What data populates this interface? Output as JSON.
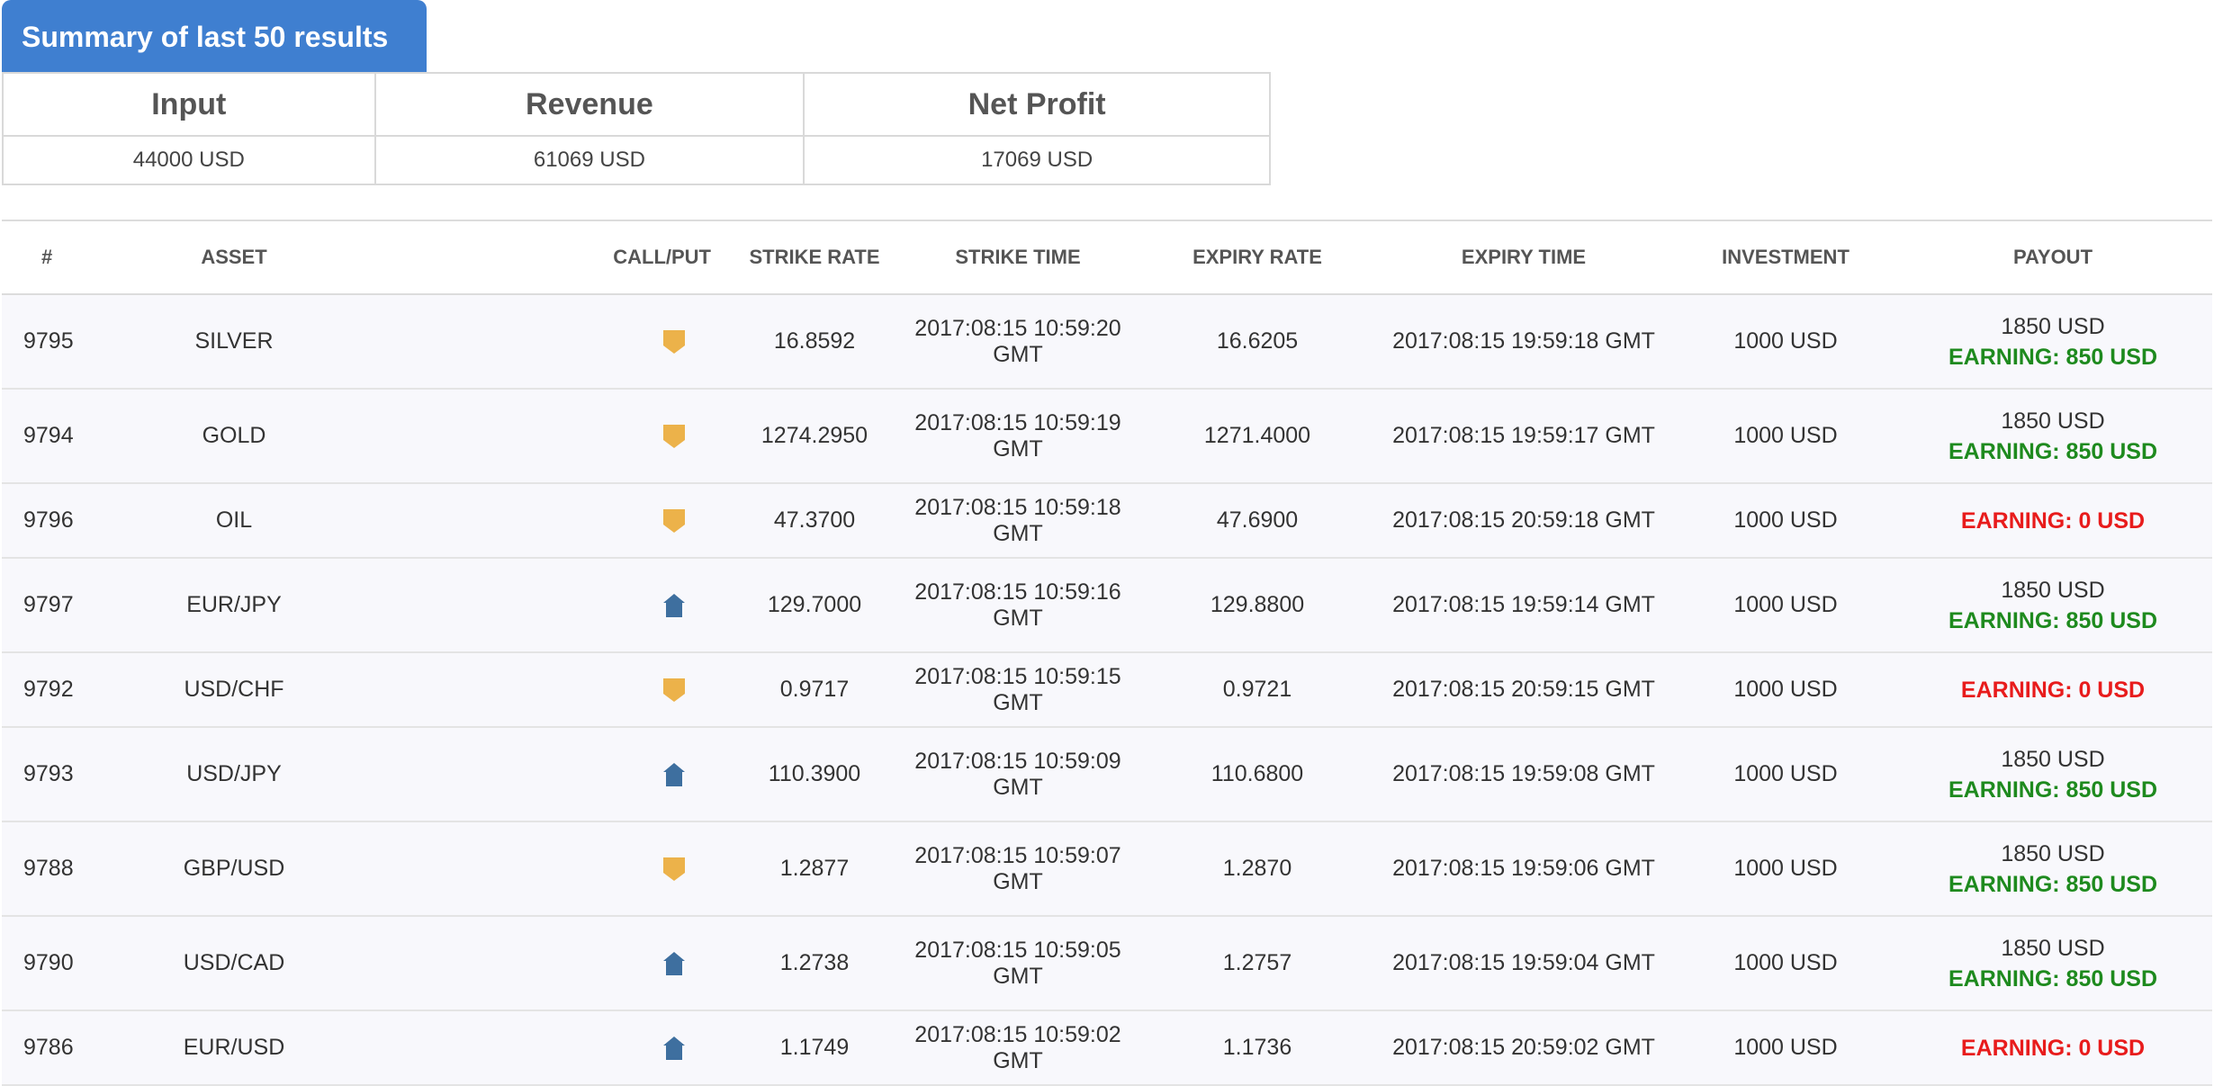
{
  "summary": {
    "title": "Summary of last 50 results",
    "headers": [
      "Input",
      "Revenue",
      "Net Profit"
    ],
    "values": [
      "44000 USD",
      "61069 USD",
      "17069 USD"
    ]
  },
  "table": {
    "headers": [
      "#",
      "ASSET",
      "CALL/PUT",
      "STRIKE RATE",
      "STRIKE TIME",
      "EXPIRY RATE",
      "EXPIRY TIME",
      "INVESTMENT",
      "PAYOUT"
    ],
    "rows": [
      {
        "id": "9795",
        "asset": "SILVER",
        "direction": "put",
        "strike_rate": "16.8592",
        "strike_time": "2017:08:15 10:59:20 GMT",
        "expiry_rate": "16.6205",
        "expiry_time": "2017:08:15 19:59:18 GMT",
        "investment": "1000 USD",
        "payout": "1850 USD",
        "earning": "EARNING: 850 USD",
        "win": true
      },
      {
        "id": "9794",
        "asset": "GOLD",
        "direction": "put",
        "strike_rate": "1274.2950",
        "strike_time": "2017:08:15 10:59:19 GMT",
        "expiry_rate": "1271.4000",
        "expiry_time": "2017:08:15 19:59:17 GMT",
        "investment": "1000 USD",
        "payout": "1850 USD",
        "earning": "EARNING: 850 USD",
        "win": true
      },
      {
        "id": "9796",
        "asset": "OIL",
        "direction": "put",
        "strike_rate": "47.3700",
        "strike_time": "2017:08:15 10:59:18 GMT",
        "expiry_rate": "47.6900",
        "expiry_time": "2017:08:15 20:59:18 GMT",
        "investment": "1000 USD",
        "payout": "",
        "earning": "EARNING: 0 USD",
        "win": false
      },
      {
        "id": "9797",
        "asset": "EUR/JPY",
        "direction": "call",
        "strike_rate": "129.7000",
        "strike_time": "2017:08:15 10:59:16 GMT",
        "expiry_rate": "129.8800",
        "expiry_time": "2017:08:15 19:59:14 GMT",
        "investment": "1000 USD",
        "payout": "1850 USD",
        "earning": "EARNING: 850 USD",
        "win": true
      },
      {
        "id": "9792",
        "asset": "USD/CHF",
        "direction": "put",
        "strike_rate": "0.9717",
        "strike_time": "2017:08:15 10:59:15 GMT",
        "expiry_rate": "0.9721",
        "expiry_time": "2017:08:15 20:59:15 GMT",
        "investment": "1000 USD",
        "payout": "",
        "earning": "EARNING: 0 USD",
        "win": false
      },
      {
        "id": "9793",
        "asset": "USD/JPY",
        "direction": "call",
        "strike_rate": "110.3900",
        "strike_time": "2017:08:15 10:59:09 GMT",
        "expiry_rate": "110.6800",
        "expiry_time": "2017:08:15 19:59:08 GMT",
        "investment": "1000 USD",
        "payout": "1850 USD",
        "earning": "EARNING: 850 USD",
        "win": true
      },
      {
        "id": "9788",
        "asset": "GBP/USD",
        "direction": "put",
        "strike_rate": "1.2877",
        "strike_time": "2017:08:15 10:59:07 GMT",
        "expiry_rate": "1.2870",
        "expiry_time": "2017:08:15 19:59:06 GMT",
        "investment": "1000 USD",
        "payout": "1850 USD",
        "earning": "EARNING: 850 USD",
        "win": true
      },
      {
        "id": "9790",
        "asset": "USD/CAD",
        "direction": "call",
        "strike_rate": "1.2738",
        "strike_time": "2017:08:15 10:59:05 GMT",
        "expiry_rate": "1.2757",
        "expiry_time": "2017:08:15 19:59:04 GMT",
        "investment": "1000 USD",
        "payout": "1850 USD",
        "earning": "EARNING: 850 USD",
        "win": true
      },
      {
        "id": "9786",
        "asset": "EUR/USD",
        "direction": "call",
        "strike_rate": "1.1749",
        "strike_time": "2017:08:15 10:59:02 GMT",
        "expiry_rate": "1.1736",
        "expiry_time": "2017:08:15 20:59:02 GMT",
        "investment": "1000 USD",
        "payout": "",
        "earning": "EARNING: 0 USD",
        "win": false
      }
    ]
  },
  "icons": {
    "call": "call-arrow-up-icon",
    "put": "put-arrow-down-icon"
  },
  "colors": {
    "accent": "#3f7fd0",
    "win": "#1e8a1e",
    "loss": "#e81c1c",
    "call_icon": "#3e6f9f",
    "put_icon": "#ecb24a"
  }
}
